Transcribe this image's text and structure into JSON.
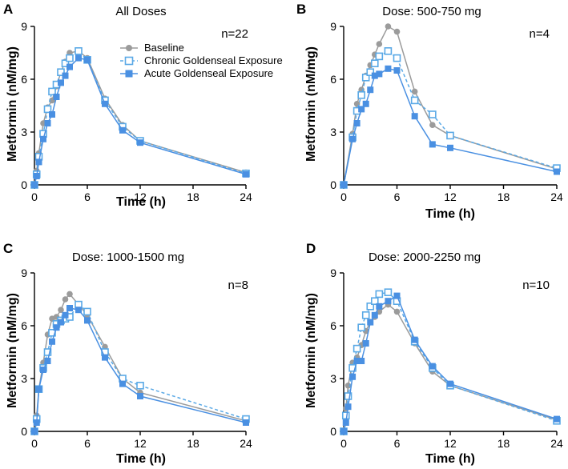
{
  "chart_data": [
    {
      "type": "line",
      "panel": "A",
      "title": "All Doses",
      "n_label": "n=22",
      "xlabel": "Time (h)",
      "ylabel": "Metformin (nM/mg)",
      "xlim": [
        0,
        24
      ],
      "ylim": [
        0,
        9
      ],
      "xticks": [
        0,
        6,
        12,
        18,
        24
      ],
      "yticks": [
        0,
        3,
        6,
        9
      ],
      "legend": true,
      "series": [
        {
          "name": "Baseline",
          "key": "baseline",
          "x": [
            0,
            0.25,
            0.5,
            1,
            1.5,
            2,
            2.5,
            3,
            3.5,
            4,
            5,
            6,
            8,
            10,
            12,
            24
          ],
          "y": [
            0,
            0.8,
            1.8,
            3.5,
            4.4,
            4.8,
            5.6,
            6.4,
            7.0,
            7.5,
            7.6,
            7.2,
            4.9,
            3.4,
            2.5,
            0.7
          ]
        },
        {
          "name": "Chronic Goldenseal Exposure",
          "key": "chronic",
          "x": [
            0,
            0.25,
            0.5,
            1,
            1.5,
            2,
            2.5,
            3,
            3.5,
            4,
            5,
            6,
            8,
            10,
            12,
            24
          ],
          "y": [
            0,
            0.6,
            1.6,
            2.9,
            4.3,
            5.3,
            5.7,
            6.4,
            6.9,
            7.2,
            7.6,
            7.1,
            4.8,
            3.3,
            2.5,
            0.65
          ]
        },
        {
          "name": "Acute Goldenseal Exposure",
          "key": "acute",
          "x": [
            0,
            0.25,
            0.5,
            1,
            1.5,
            2,
            2.5,
            3,
            3.5,
            4,
            5,
            6,
            8,
            10,
            12,
            24
          ],
          "y": [
            0,
            0.5,
            1.3,
            2.6,
            3.5,
            4.0,
            5.0,
            5.8,
            6.2,
            6.7,
            7.2,
            7.1,
            4.6,
            3.1,
            2.4,
            0.6
          ]
        }
      ]
    },
    {
      "type": "line",
      "panel": "B",
      "title": "Dose: 500-750 mg",
      "n_label": "n=4",
      "xlabel": "Time (h)",
      "ylabel": "Metformin (nM/mg)",
      "xlim": [
        0,
        24
      ],
      "ylim": [
        0,
        9
      ],
      "xticks": [
        0,
        6,
        12,
        18,
        24
      ],
      "yticks": [
        0,
        3,
        6,
        9
      ],
      "legend": false,
      "series": [
        {
          "name": "Baseline",
          "key": "baseline",
          "x": [
            0,
            1,
            1.5,
            2,
            2.5,
            3,
            3.5,
            4,
            5,
            6,
            8,
            10,
            12,
            24
          ],
          "y": [
            0,
            2.9,
            4.6,
            5.4,
            6.2,
            6.8,
            7.4,
            8.0,
            9.0,
            8.7,
            5.3,
            3.4,
            2.8,
            0.9
          ]
        },
        {
          "name": "Chronic Goldenseal Exposure",
          "key": "chronic",
          "x": [
            0,
            1,
            1.5,
            2,
            2.5,
            3,
            3.5,
            4,
            5,
            6,
            8,
            10,
            12,
            24
          ],
          "y": [
            0,
            2.7,
            4.2,
            5.1,
            6.1,
            6.4,
            6.9,
            7.3,
            7.6,
            7.2,
            4.8,
            4.0,
            2.8,
            0.95
          ]
        },
        {
          "name": "Acute Goldenseal Exposure",
          "key": "acute",
          "x": [
            0,
            1,
            1.5,
            2,
            2.5,
            3,
            3.5,
            4,
            5,
            6,
            8,
            10,
            12,
            24
          ],
          "y": [
            0,
            2.6,
            3.5,
            4.3,
            4.6,
            5.4,
            6.2,
            6.3,
            6.6,
            6.5,
            3.9,
            2.3,
            2.1,
            0.75
          ]
        }
      ]
    },
    {
      "type": "line",
      "panel": "C",
      "title": "Dose: 1000-1500 mg",
      "n_label": "n=8",
      "xlabel": "Time (h)",
      "ylabel": "Metformin (nM/mg)",
      "xlim": [
        0,
        24
      ],
      "ylim": [
        0,
        9
      ],
      "xticks": [
        0,
        6,
        12,
        18,
        24
      ],
      "yticks": [
        0,
        3,
        6,
        9
      ],
      "legend": false,
      "series": [
        {
          "name": "Baseline",
          "key": "baseline",
          "x": [
            0,
            0.25,
            0.5,
            1,
            1.5,
            2,
            2.5,
            3,
            3.5,
            4,
            5,
            6,
            8,
            10,
            12,
            24
          ],
          "y": [
            0,
            0.9,
            2.4,
            3.9,
            5.5,
            6.4,
            6.5,
            6.9,
            7.5,
            7.8,
            7.2,
            6.6,
            4.8,
            3.0,
            2.2,
            0.6
          ]
        },
        {
          "name": "Chronic Goldenseal Exposure",
          "key": "chronic",
          "x": [
            0,
            0.25,
            0.5,
            1,
            1.5,
            2,
            2.5,
            3,
            3.5,
            4,
            5,
            6,
            8,
            10,
            12,
            24
          ],
          "y": [
            0,
            0.7,
            2.4,
            3.6,
            4.5,
            5.6,
            6.1,
            6.3,
            6.4,
            6.5,
            7.2,
            6.8,
            4.5,
            3.0,
            2.6,
            0.7
          ]
        },
        {
          "name": "Acute Goldenseal Exposure",
          "key": "acute",
          "x": [
            0,
            0.25,
            0.5,
            1,
            1.5,
            2,
            2.5,
            3,
            3.5,
            4,
            5,
            6,
            8,
            10,
            12,
            24
          ],
          "y": [
            0,
            0.5,
            2.4,
            3.5,
            4.0,
            5.1,
            5.9,
            6.2,
            6.6,
            7.0,
            6.9,
            6.3,
            4.2,
            2.7,
            2.0,
            0.5
          ]
        }
      ]
    },
    {
      "type": "line",
      "panel": "D",
      "title": "Dose: 2000-2250 mg",
      "n_label": "n=10",
      "xlabel": "Time (h)",
      "ylabel": "Metformin (nM/mg)",
      "xlim": [
        0,
        24
      ],
      "ylim": [
        0,
        9
      ],
      "xticks": [
        0,
        6,
        12,
        18,
        24
      ],
      "yticks": [
        0,
        3,
        6,
        9
      ],
      "legend": false,
      "series": [
        {
          "name": "Baseline",
          "key": "baseline",
          "x": [
            0,
            0.25,
            0.5,
            1,
            1.5,
            2,
            2.5,
            3,
            3.5,
            4,
            5,
            6,
            8,
            10,
            12,
            24
          ],
          "y": [
            0,
            1.3,
            2.6,
            3.9,
            4.2,
            4.9,
            5.7,
            6.2,
            6.5,
            6.8,
            7.2,
            6.8,
            5.0,
            3.4,
            2.6,
            0.65
          ]
        },
        {
          "name": "Chronic Goldenseal Exposure",
          "key": "chronic",
          "x": [
            0,
            0.25,
            0.5,
            1,
            1.5,
            2,
            2.5,
            3,
            3.5,
            4,
            5,
            6,
            8,
            10,
            12,
            24
          ],
          "y": [
            0,
            0.9,
            2.0,
            3.6,
            4.7,
            5.9,
            6.6,
            7.1,
            7.4,
            7.8,
            7.9,
            7.4,
            5.1,
            3.6,
            2.6,
            0.6
          ]
        },
        {
          "name": "Acute Goldenseal Exposure",
          "key": "acute",
          "x": [
            0,
            0.25,
            0.5,
            1,
            1.5,
            2,
            2.5,
            3,
            3.5,
            4,
            5,
            6,
            8,
            10,
            12,
            24
          ],
          "y": [
            0,
            0.5,
            1.4,
            3.1,
            4.0,
            4.0,
            5.0,
            6.2,
            6.6,
            7.1,
            7.4,
            7.7,
            5.2,
            3.7,
            2.7,
            0.7
          ]
        }
      ]
    }
  ],
  "colors": {
    "baseline": "#9b9b9b",
    "chronic": "#5aa9e6",
    "acute": "#4a90e2",
    "axis": "#000000"
  }
}
